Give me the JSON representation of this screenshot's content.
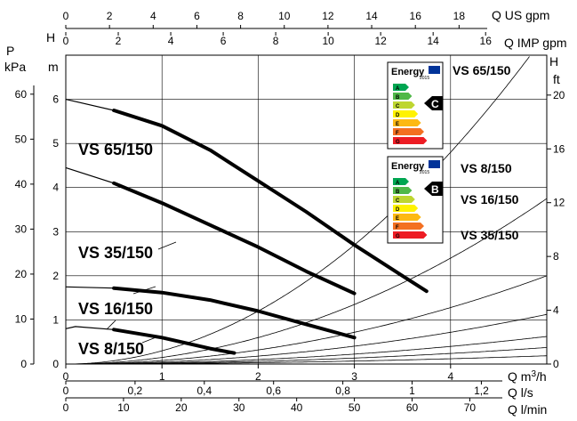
{
  "chart_data": {
    "type": "line",
    "title": "",
    "x_primary": {
      "label": "Q m³/h",
      "range": [
        0,
        5
      ],
      "ticks": [
        "0",
        "1",
        "2",
        "3",
        "4"
      ]
    },
    "x_secondary": [
      {
        "label": "Q l/s",
        "factor": 0.27778,
        "ticks": [
          "0",
          "0,2",
          "0,4",
          "0,6",
          "0,8",
          "1",
          "1,2"
        ],
        "tick_values": [
          0,
          0.2,
          0.4,
          0.6,
          0.8,
          1.0,
          1.2
        ]
      },
      {
        "label": "Q l/min",
        "factor": 16.6667,
        "ticks": [
          "0",
          "10",
          "20",
          "30",
          "40",
          "50",
          "60",
          "70"
        ],
        "tick_values": [
          0,
          10,
          20,
          30,
          40,
          50,
          60,
          70
        ]
      }
    ],
    "x_top": [
      {
        "label": "Q US gpm",
        "factor": 4.4029,
        "ticks": [
          "0",
          "2",
          "4",
          "6",
          "8",
          "10",
          "12",
          "14",
          "16",
          "18"
        ],
        "tick_values": [
          0,
          2,
          4,
          6,
          8,
          10,
          12,
          14,
          16,
          18
        ]
      },
      {
        "label": "Q IMP gpm",
        "factor": 3.6662,
        "ticks": [
          "0",
          "2",
          "4",
          "6",
          "8",
          "10",
          "12",
          "14",
          "16"
        ],
        "tick_values": [
          0,
          2,
          4,
          6,
          8,
          10,
          12,
          14,
          16
        ]
      }
    ],
    "y_left_m": {
      "label": "H",
      "unit": "m",
      "range": [
        0,
        7
      ],
      "ticks": [
        "0",
        "1",
        "2",
        "3",
        "4",
        "5",
        "6"
      ]
    },
    "y_left_kpa": {
      "label": "P",
      "unit": "kPa",
      "ticks": [
        "0",
        "10",
        "20",
        "30",
        "40",
        "50",
        "60"
      ],
      "tick_values": [
        0,
        10,
        20,
        30,
        40,
        50,
        60
      ]
    },
    "y_right_ft": {
      "label": "H",
      "unit": "ft",
      "ticks": [
        "0",
        "4",
        "8",
        "12",
        "16",
        "20"
      ],
      "tick_values": [
        0,
        4,
        8,
        12,
        16,
        20
      ]
    },
    "series": [
      {
        "name": "VS 65/150",
        "x": [
          0,
          0.5,
          1.0,
          1.5,
          2.0,
          2.5,
          3.0,
          3.5,
          3.75
        ],
        "y": [
          6.0,
          5.75,
          5.4,
          4.85,
          4.15,
          3.45,
          2.7,
          2.0,
          1.65
        ]
      },
      {
        "name": "VS 35/150",
        "x": [
          0,
          0.5,
          1.0,
          1.5,
          2.0,
          2.5,
          3.0
        ],
        "y": [
          4.45,
          4.1,
          3.65,
          3.15,
          2.65,
          2.1,
          1.6
        ]
      },
      {
        "name": "VS 16/150",
        "x": [
          0,
          0.5,
          1.0,
          1.5,
          2.0,
          2.5,
          3.0
        ],
        "y": [
          1.75,
          1.72,
          1.62,
          1.45,
          1.2,
          0.9,
          0.6
        ]
      },
      {
        "name": "VS 8/150",
        "x": [
          0,
          0.1,
          0.5,
          1.0,
          1.5,
          1.75
        ],
        "y": [
          0.8,
          0.85,
          0.78,
          0.6,
          0.35,
          0.25
        ]
      }
    ],
    "system_curves_k": [
      0.3,
      0.15,
      0.08,
      0.045,
      0.025,
      0.015,
      0.0075
    ],
    "grid": true,
    "curve_labels": [
      {
        "text": "VS 65/150",
        "series": 0
      },
      {
        "text": "VS 35/150",
        "series": 1
      },
      {
        "text": "VS 16/150",
        "series": 2
      },
      {
        "text": "VS 8/150",
        "series": 3
      }
    ]
  },
  "energy_labels": [
    {
      "title_small": "ENERGY",
      "title_big": "Energy",
      "year": "2015",
      "class": "C",
      "pumps": [
        "VS 65/150"
      ]
    },
    {
      "title_small": "ENERGY",
      "title_big": "Energy",
      "year": "2015",
      "class": "B",
      "pumps": [
        "VS 8/150",
        "VS 16/150",
        "VS 35/150"
      ]
    }
  ],
  "energy_classes": [
    "A",
    "B",
    "C",
    "D",
    "E",
    "F",
    "G"
  ],
  "energy_colors": [
    "#00a651",
    "#50b848",
    "#bed630",
    "#fff200",
    "#fdb913",
    "#f37021",
    "#ed1c24"
  ]
}
